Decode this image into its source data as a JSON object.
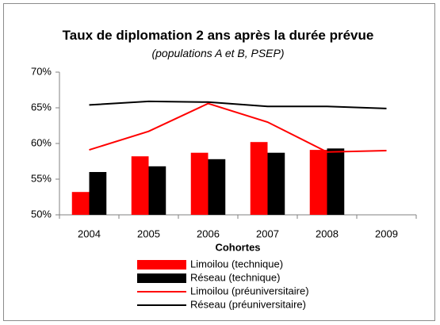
{
  "chart_data": {
    "type": "bar",
    "title": "Taux de diplomation 2 ans après la durée prévue",
    "subtitle": "(populations A et B, PSEP)",
    "x_label": "Cohortes",
    "categories": [
      "2004",
      "2005",
      "2006",
      "2007",
      "2008",
      "2009"
    ],
    "series": [
      {
        "name": "Limoilou (technique)",
        "type": "bar",
        "color": "#ff0000",
        "values": [
          53.2,
          58.2,
          58.7,
          60.2,
          59.1,
          null
        ]
      },
      {
        "name": "Réseau (technique)",
        "type": "bar",
        "color": "#000000",
        "values": [
          56.0,
          56.8,
          57.8,
          58.7,
          59.3,
          null
        ]
      },
      {
        "name": "Limoilou (préuniversitaire)",
        "type": "line",
        "color": "#ff0000",
        "values": [
          59.1,
          61.7,
          65.6,
          63.0,
          58.8,
          59.0
        ]
      },
      {
        "name": "Réseau (préuniversitaire)",
        "type": "line",
        "color": "#000000",
        "values": [
          65.4,
          65.9,
          65.8,
          65.2,
          65.2,
          64.9
        ]
      }
    ],
    "ylim": [
      50,
      70
    ],
    "yticks": [
      {
        "value": 50,
        "label": "50%"
      },
      {
        "value": 55,
        "label": "55%"
      },
      {
        "value": 60,
        "label": "60%"
      },
      {
        "value": 65,
        "label": "65%"
      },
      {
        "value": 70,
        "label": "70%"
      }
    ],
    "grid": false
  }
}
